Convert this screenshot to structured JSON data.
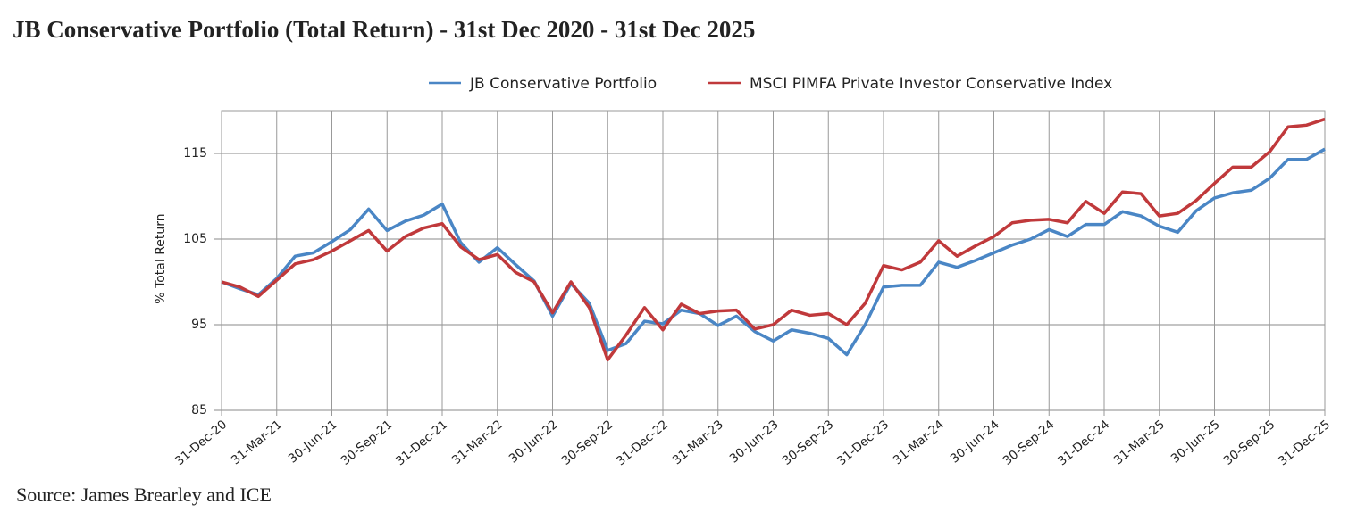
{
  "chart_data": {
    "type": "line",
    "title": "JB Conservative Portfolio (Total Return) - 31st Dec 2020 - 31st Dec 2025",
    "y_label": "% Total Return",
    "source": "Source: James Brearley and ICE",
    "categories": [
      "31-Dec-20",
      null,
      null,
      "31-Mar-21",
      null,
      null,
      "30-Jun-21",
      null,
      null,
      "30-Sep-21",
      null,
      null,
      "31-Dec-21",
      null,
      null,
      "31-Mar-22",
      null,
      null,
      "30-Jun-22",
      null,
      null,
      "30-Sep-22",
      null,
      null,
      "31-Dec-22",
      null,
      null,
      "31-Mar-23",
      null,
      null,
      "30-Jun-23",
      null,
      null,
      "30-Sep-23",
      null,
      null,
      "31-Dec-23",
      null,
      null,
      "31-Mar-24",
      null,
      null,
      "30-Jun-24",
      null,
      null,
      "30-Sep-24",
      null,
      null,
      "31-Dec-24",
      null,
      null,
      "31-Mar-25",
      null,
      null,
      "30-Jun-25",
      null,
      null,
      "30-Sep-25",
      null,
      null,
      "31-Dec-25"
    ],
    "series": [
      {
        "name": "JB Conservative Portfolio",
        "color": "#4a86c5",
        "values": [
          100,
          99.2,
          98.5,
          100.4,
          103.0,
          103.4,
          104.7,
          106.1,
          108.5,
          106.0,
          107.1,
          107.8,
          109.1,
          104.6,
          102.3,
          104.0,
          102.0,
          100.1,
          96.0,
          99.8,
          97.5,
          92.0,
          92.8,
          95.4,
          95.1,
          96.7,
          96.3,
          94.9,
          96.0,
          94.2,
          93.1,
          94.4,
          94.0,
          93.4,
          91.5,
          95.0,
          99.4,
          99.6,
          99.6,
          102.3,
          101.7,
          102.5,
          103.4,
          104.3,
          105.0,
          106.1,
          105.3,
          106.7,
          106.7,
          108.2,
          107.7,
          106.5,
          105.8,
          108.3,
          109.8,
          110.4,
          110.7,
          112.1,
          114.3,
          114.3,
          115.5
        ]
      },
      {
        "name": "MSCI PIMFA Private Investor Conservative Index",
        "color": "#c0393b",
        "values": [
          100,
          99.4,
          98.3,
          100.2,
          102.1,
          102.6,
          103.6,
          104.8,
          106.0,
          103.6,
          105.3,
          106.3,
          106.8,
          104.1,
          102.6,
          103.2,
          101.1,
          100.0,
          96.4,
          100.0,
          97.0,
          90.9,
          93.8,
          97.0,
          94.4,
          97.4,
          96.3,
          96.6,
          96.7,
          94.5,
          95.0,
          96.7,
          96.1,
          96.3,
          95.0,
          97.5,
          101.9,
          101.4,
          102.3,
          104.8,
          103.0,
          104.2,
          105.3,
          106.9,
          107.2,
          107.3,
          106.9,
          109.4,
          108.0,
          110.5,
          110.3,
          107.7,
          108.0,
          109.5,
          111.5,
          113.4,
          113.4,
          115.2,
          118.1,
          118.3,
          119.0
        ]
      }
    ],
    "ylim": [
      85,
      120
    ],
    "yticks": [
      85,
      95,
      105,
      115
    ],
    "grid": true
  }
}
